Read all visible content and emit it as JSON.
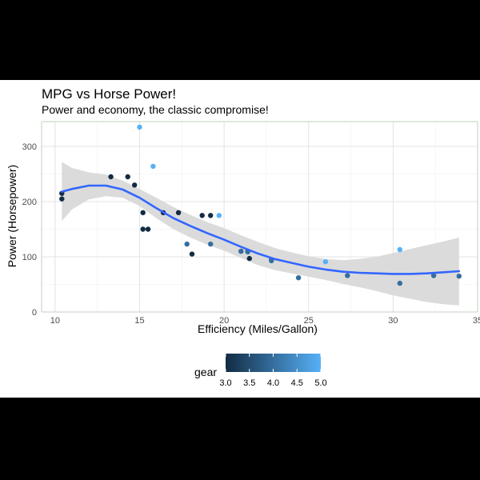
{
  "chart_data": {
    "type": "scatter",
    "title": "MPG vs Horse Power!",
    "subtitle": "Power and economy, the classic compromise!",
    "xlabel": "Efficiency (Miles/Gallon)",
    "ylabel": "Power (Horsepower)",
    "xlim": [
      9.2,
      35.0
    ],
    "ylim": [
      0,
      345
    ],
    "x_ticks": [
      10,
      15,
      20,
      25,
      30,
      35
    ],
    "y_ticks": [
      0,
      100,
      200,
      300
    ],
    "grid": true,
    "legend_position": "bottom",
    "color_scale": {
      "name": "gear",
      "min": 3.0,
      "max": 5.0,
      "ticks": [
        "3.0",
        "3.5",
        "4.0",
        "4.5",
        "5.0"
      ],
      "low_color": "#132B43",
      "high_color": "#56B1F7"
    },
    "points": [
      {
        "x": 21.0,
        "y": 110,
        "gear": 4
      },
      {
        "x": 21.0,
        "y": 110,
        "gear": 4
      },
      {
        "x": 22.8,
        "y": 93,
        "gear": 4
      },
      {
        "x": 21.4,
        "y": 110,
        "gear": 3
      },
      {
        "x": 18.7,
        "y": 175,
        "gear": 3
      },
      {
        "x": 18.1,
        "y": 105,
        "gear": 3
      },
      {
        "x": 14.3,
        "y": 245,
        "gear": 3
      },
      {
        "x": 24.4,
        "y": 62,
        "gear": 4
      },
      {
        "x": 22.8,
        "y": 95,
        "gear": 4
      },
      {
        "x": 19.2,
        "y": 123,
        "gear": 4
      },
      {
        "x": 17.8,
        "y": 123,
        "gear": 4
      },
      {
        "x": 16.4,
        "y": 180,
        "gear": 3
      },
      {
        "x": 17.3,
        "y": 180,
        "gear": 3
      },
      {
        "x": 15.2,
        "y": 180,
        "gear": 3
      },
      {
        "x": 10.4,
        "y": 205,
        "gear": 3
      },
      {
        "x": 10.4,
        "y": 215,
        "gear": 3
      },
      {
        "x": 14.7,
        "y": 230,
        "gear": 3
      },
      {
        "x": 32.4,
        "y": 66,
        "gear": 4
      },
      {
        "x": 30.4,
        "y": 52,
        "gear": 4
      },
      {
        "x": 33.9,
        "y": 65,
        "gear": 4
      },
      {
        "x": 21.5,
        "y": 97,
        "gear": 3
      },
      {
        "x": 15.5,
        "y": 150,
        "gear": 3
      },
      {
        "x": 15.2,
        "y": 150,
        "gear": 3
      },
      {
        "x": 13.3,
        "y": 245,
        "gear": 3
      },
      {
        "x": 19.2,
        "y": 175,
        "gear": 3
      },
      {
        "x": 27.3,
        "y": 66,
        "gear": 4
      },
      {
        "x": 26.0,
        "y": 91,
        "gear": 5
      },
      {
        "x": 30.4,
        "y": 113,
        "gear": 5
      },
      {
        "x": 15.8,
        "y": 264,
        "gear": 5
      },
      {
        "x": 19.7,
        "y": 175,
        "gear": 5
      },
      {
        "x": 15.0,
        "y": 335,
        "gear": 5
      },
      {
        "x": 21.4,
        "y": 109,
        "gear": 4
      }
    ],
    "smooth": {
      "color": "#3366FF",
      "band_color": "#D9D9D9",
      "x": [
        10.4,
        11.0,
        12.0,
        13.0,
        14.0,
        15.0,
        16.0,
        17.0,
        18.0,
        19.0,
        20.0,
        21.0,
        22.0,
        23.0,
        24.0,
        25.0,
        26.0,
        27.0,
        28.0,
        29.0,
        30.0,
        31.0,
        32.0,
        33.0,
        33.9
      ],
      "fit": [
        218,
        223,
        229,
        229,
        222,
        207,
        188,
        170,
        156,
        143,
        131,
        118,
        106,
        96,
        89,
        82,
        77,
        73,
        71,
        70,
        69,
        69,
        70,
        72,
        74
      ],
      "lower": [
        165,
        186,
        204,
        210,
        207,
        192,
        170,
        150,
        135,
        122,
        111,
        98,
        85,
        76,
        70,
        64,
        58,
        51,
        45,
        38,
        30,
        24,
        18,
        14,
        12
      ],
      "upper": [
        272,
        261,
        253,
        249,
        238,
        223,
        207,
        190,
        176,
        163,
        152,
        139,
        127,
        116,
        108,
        101,
        96,
        94,
        96,
        100,
        107,
        114,
        121,
        128,
        135
      ]
    }
  }
}
